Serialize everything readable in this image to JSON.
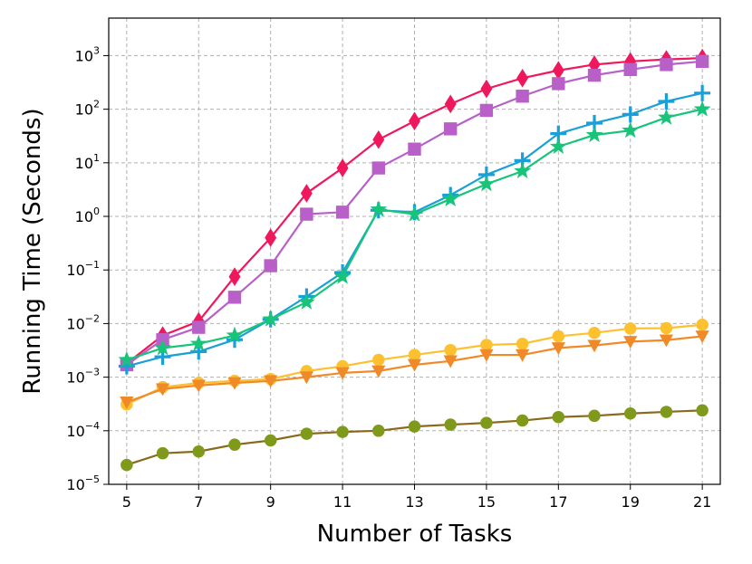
{
  "chart_data": {
    "type": "line",
    "xlabel": "Number of Tasks",
    "ylabel": "Running Time (Seconds)",
    "yscale": "log",
    "xlim": [
      4.5,
      21.5
    ],
    "ylim_exp": [
      -5,
      3.7
    ],
    "x_ticks": [
      "5",
      "7",
      "9",
      "11",
      "13",
      "15",
      "17",
      "19",
      "21"
    ],
    "y_ticks": [
      {
        "base": "10",
        "exp": "−5",
        "value": 1e-05
      },
      {
        "base": "10",
        "exp": "−4",
        "value": 0.0001
      },
      {
        "base": "10",
        "exp": "−3",
        "value": 0.001
      },
      {
        "base": "10",
        "exp": "−2",
        "value": 0.01
      },
      {
        "base": "10",
        "exp": "−1",
        "value": 0.1
      },
      {
        "base": "10",
        "exp": "0",
        "value": 1
      },
      {
        "base": "10",
        "exp": "1",
        "value": 10
      },
      {
        "base": "10",
        "exp": "2",
        "value": 100
      },
      {
        "base": "10",
        "exp": "3",
        "value": 1000
      }
    ],
    "grid": true,
    "x": [
      5,
      6,
      7,
      8,
      9,
      10,
      11,
      12,
      13,
      14,
      15,
      16,
      17,
      18,
      19,
      20,
      21
    ],
    "series": [
      {
        "marker": "diamond",
        "color": "#f0185c",
        "values": [
          0.0018,
          0.006,
          0.011,
          0.075,
          0.4,
          2.7,
          8,
          27,
          60,
          125,
          240,
          380,
          530,
          680,
          780,
          850,
          900
        ]
      },
      {
        "marker": "square",
        "color": "#b860c8",
        "values": [
          0.0017,
          0.005,
          0.0085,
          0.031,
          0.12,
          1.1,
          1.2,
          8,
          18,
          43,
          95,
          175,
          300,
          430,
          550,
          680,
          780
        ]
      },
      {
        "marker": "plus",
        "color": "#1a9fd8",
        "values": [
          0.0016,
          0.0024,
          0.003,
          0.005,
          0.012,
          0.032,
          0.09,
          1.3,
          1.2,
          2.5,
          6,
          11,
          35,
          55,
          80,
          140,
          200
        ]
      },
      {
        "marker": "star",
        "color": "#17c47a",
        "values": [
          0.0021,
          0.0035,
          0.0042,
          0.006,
          0.012,
          0.025,
          0.075,
          1.35,
          1.1,
          2.1,
          4,
          7,
          20,
          33,
          40,
          70,
          100
        ]
      },
      {
        "marker": "circle",
        "color": "#fdc02f",
        "values": [
          0.00031,
          0.00065,
          0.00078,
          0.00085,
          0.00092,
          0.0013,
          0.0016,
          0.0021,
          0.0026,
          0.0032,
          0.004,
          0.0042,
          0.0058,
          0.0067,
          0.0081,
          0.0082,
          0.0095
        ]
      },
      {
        "marker": "triangle-down",
        "color": "#f08a28",
        "values": [
          0.00034,
          0.0006,
          0.0007,
          0.00078,
          0.00085,
          0.001,
          0.0012,
          0.0013,
          0.0017,
          0.002,
          0.0026,
          0.0026,
          0.0035,
          0.0039,
          0.0046,
          0.0049,
          0.0058
        ]
      },
      {
        "marker": "circle",
        "color": "#8a6a1a",
        "fill": "#7f9a1a",
        "values": [
          2.3e-05,
          3.8e-05,
          4.1e-05,
          5.5e-05,
          6.6e-05,
          8.8e-05,
          9.5e-05,
          0.0001,
          0.00012,
          0.00013,
          0.00014,
          0.000155,
          0.00018,
          0.00019,
          0.00021,
          0.000225,
          0.00024
        ]
      }
    ]
  }
}
